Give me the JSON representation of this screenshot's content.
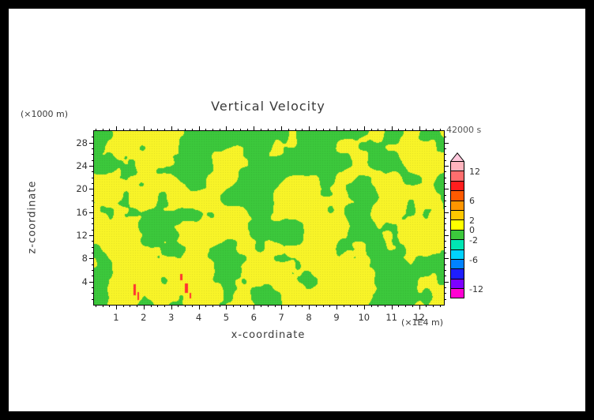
{
  "chart_data": {
    "type": "heatmap",
    "title": "Vertical Velocity",
    "time_label": "42000 s",
    "xlabel": "x-coordinate",
    "x_units_label": "(×1E4 m)",
    "ylabel": "z-coordinate",
    "y_units_label": "(×1000 m)",
    "x_range": [
      0.2,
      12.9
    ],
    "z_range": [
      0,
      30
    ],
    "x_ticks": [
      1,
      2,
      3,
      4,
      5,
      6,
      7,
      8,
      9,
      10,
      11,
      12
    ],
    "x_minor_step": 0.25,
    "z_ticks": [
      4,
      8,
      12,
      16,
      20,
      24,
      28
    ],
    "z_minor_step": 1,
    "grid": false,
    "legend_position": "right-colorbar",
    "field": {
      "description": "Mottled vertical-velocity cross-section; values almost everywhere between -2 and +2 (yellow = 0 to 2, green = -2 to 0), with a few small strong-updraft specks (red, ~6-10) near the bottom boundary around x ≈ 1.5 and x ≈ 3.3 (×1E4 m).",
      "dominant_value_range": [
        -2,
        2
      ],
      "positive_color": "#f8f428",
      "negative_color": "#3cc83c",
      "noise": {
        "seed": 1234567,
        "octaves": [
          [
            42,
            1.0
          ],
          [
            21,
            0.55
          ],
          [
            10,
            0.3
          ]
        ],
        "threshold": 0.515
      },
      "spots": [
        {
          "x": 50,
          "y": 194,
          "w": 3,
          "h": 14,
          "color": "#ff3232"
        },
        {
          "x": 55,
          "y": 204,
          "w": 2,
          "h": 10,
          "color": "#ff3232"
        },
        {
          "x": 109,
          "y": 181,
          "w": 3,
          "h": 8,
          "color": "#ff3232"
        },
        {
          "x": 115,
          "y": 193,
          "w": 4,
          "h": 12,
          "color": "#ff3232"
        },
        {
          "x": 121,
          "y": 205,
          "w": 2,
          "h": 7,
          "color": "#ff3232"
        }
      ]
    },
    "colorbar": {
      "orientation": "vertical",
      "extend_above_color": "#ffc8dc",
      "box_colors_top_to_bottom": [
        "#ffb4be",
        "#ff6e6e",
        "#ff1e1e",
        "#ff5a00",
        "#ff9600",
        "#ffc800",
        "#ffff00",
        "#3cc83c",
        "#00e6b4",
        "#00d2ff",
        "#0082ff",
        "#1e1eff",
        "#7d00ff",
        "#ff00d2"
      ],
      "level_max": 14,
      "level_min": -14,
      "level_step": 2,
      "labels": [
        12,
        6,
        2,
        0,
        -2,
        -6,
        -12
      ]
    }
  }
}
